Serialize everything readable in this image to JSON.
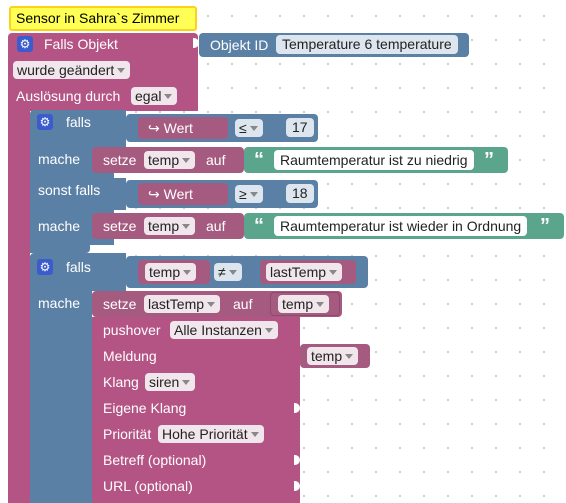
{
  "comment": "Sensor in Sahra`s Zimmer",
  "trigger": {
    "label": "Falls Objekt",
    "changed": "wurde geändert",
    "trigger_by_label": "Auslösung durch",
    "trigger_by_value": "egal",
    "object_id_label": "Objekt ID",
    "object_id_value": "Temperature 6 temperature"
  },
  "if1": {
    "falls": "falls",
    "left": "↪ Wert",
    "op": "≤",
    "right": "17",
    "mache": "mache",
    "setze": "setze",
    "var": "temp",
    "auf": "auf",
    "text": "Raumtemperatur ist zu niedrig"
  },
  "elseif": {
    "label": "sonst falls",
    "left": "↪ Wert",
    "op": "≥",
    "right": "18",
    "mache": "mache",
    "setze": "setze",
    "var": "temp",
    "auf": "auf",
    "text": "Raumtemperatur ist wieder in Ordnung"
  },
  "if2": {
    "falls": "falls",
    "left": "temp",
    "op": "≠",
    "right": "lastTemp",
    "mache": "mache",
    "setze": "setze",
    "var": "lastTemp",
    "auf": "auf",
    "value": "temp"
  },
  "pushover": {
    "label": "pushover",
    "instances": "Alle Instanzen",
    "meldung": "Meldung",
    "meldung_value": "temp",
    "klang": "Klang",
    "klang_value": "siren",
    "eigene_klang": "Eigene Klang",
    "prioritaet": "Priorität",
    "prioritaet_value": "Hohe Priorität",
    "betreff": "Betreff (optional)",
    "url": "URL (optional)"
  }
}
